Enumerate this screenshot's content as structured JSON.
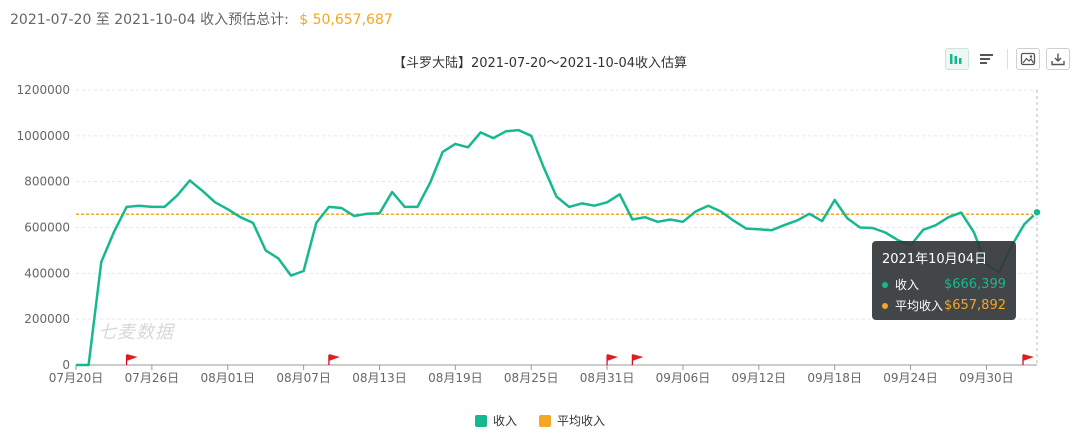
{
  "summary": {
    "range_label": "2021-07-20 至 2021-10-04 收入预估总计:",
    "total": "$ 50,657,687"
  },
  "watermark": "七麦数据",
  "toolbar": {
    "bar_icon": "bar-chart-icon",
    "list_icon": "list-icon",
    "image_icon": "image-icon",
    "download_icon": "download-icon"
  },
  "tooltip": {
    "date": "2021年10月04日",
    "rows": [
      {
        "label": "收入",
        "value": "$666,399",
        "color": "#17b890"
      },
      {
        "label": "平均收入",
        "value": "$657,892",
        "color": "#f5a623"
      }
    ]
  },
  "legend": [
    {
      "label": "收入",
      "color": "#17b890"
    },
    {
      "label": "平均收入",
      "color": "#f5a623"
    }
  ],
  "chart_data": {
    "type": "line",
    "title": "【斗罗大陆】2021-07-20～2021-10-04收入估算",
    "xlabel": "",
    "ylabel": "",
    "ylim": [
      0,
      1200000
    ],
    "yticks": [
      "0",
      "200000",
      "400000",
      "600000",
      "800000",
      "1000000",
      "1200000"
    ],
    "x_tick_labels": [
      "07月20日",
      "07月26日",
      "08月01日",
      "08月07日",
      "08月13日",
      "08月19日",
      "08月25日",
      "08月31日",
      "09月06日",
      "09月12日",
      "09月18日",
      "09月24日",
      "09月30日"
    ],
    "x_tick_every": 6,
    "grid": true,
    "legend_position": "bottom-center",
    "series": [
      {
        "name": "收入",
        "color": "#17b890",
        "values": [
          0,
          0,
          450000,
          580000,
          690000,
          695000,
          690000,
          690000,
          740000,
          805000,
          760000,
          710000,
          680000,
          645000,
          620000,
          500000,
          465000,
          390000,
          410000,
          620000,
          690000,
          685000,
          650000,
          660000,
          662000,
          755000,
          690000,
          690000,
          795000,
          930000,
          965000,
          950000,
          1015000,
          990000,
          1020000,
          1025000,
          1000000,
          860000,
          735000,
          690000,
          705000,
          695000,
          710000,
          745000,
          635000,
          645000,
          625000,
          635000,
          625000,
          670000,
          695000,
          670000,
          630000,
          595000,
          592000,
          588000,
          610000,
          630000,
          660000,
          628000,
          720000,
          640000,
          600000,
          598000,
          578000,
          545000,
          522000,
          590000,
          610000,
          645000,
          665000,
          580000,
          440000,
          405000,
          520000,
          615000,
          666399
        ]
      },
      {
        "name": "平均收入",
        "color": "#f5a623",
        "constant": 657892
      }
    ],
    "markers": {
      "type": "red-flag",
      "indices": [
        4,
        20,
        42,
        44,
        76
      ]
    }
  }
}
